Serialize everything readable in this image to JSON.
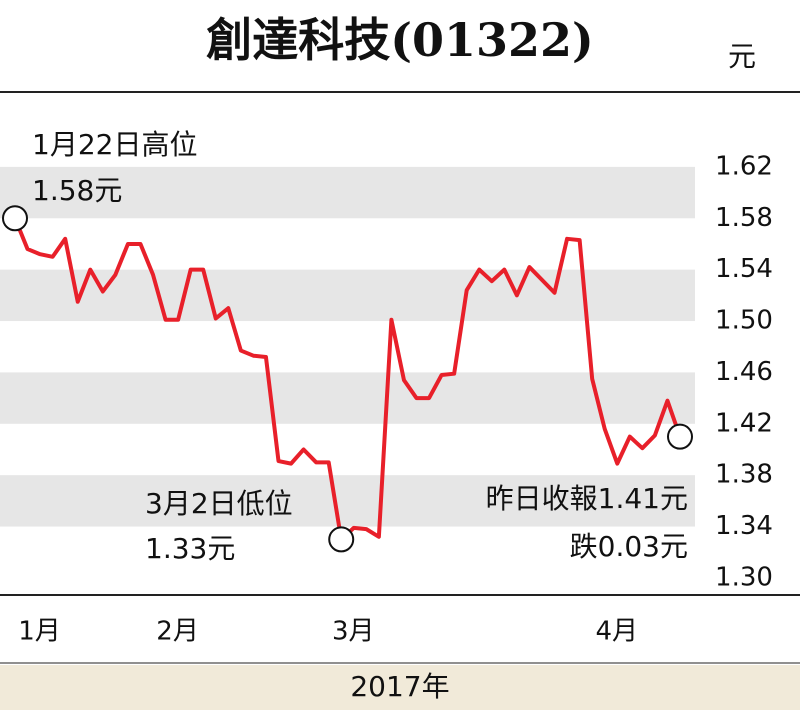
{
  "chart_data": {
    "type": "line",
    "title": "創達科技(01322)",
    "y_unit": "元",
    "x_label": "2017年",
    "annotations": [
      "1月22日高位",
      "1.58元",
      "3月2日低位",
      "1.33元",
      "昨日收報1.41元",
      "跌0.03元"
    ],
    "series": [
      {
        "color": "#e8202a",
        "values": [
          1.58,
          1.556,
          1.552,
          1.55,
          1.564,
          1.515,
          1.54,
          1.523,
          1.536,
          1.56,
          1.56,
          1.536,
          1.501,
          1.501,
          1.54,
          1.54,
          1.502,
          1.51,
          1.477,
          1.473,
          1.472,
          1.391,
          1.389,
          1.4,
          1.39,
          1.39,
          1.33,
          1.339,
          1.338,
          1.332,
          1.501,
          1.454,
          1.44,
          1.44,
          1.458,
          1.459,
          1.524,
          1.54,
          1.531,
          1.54,
          1.52,
          1.542,
          1.532,
          1.522,
          1.564,
          1.563,
          1.455,
          1.416,
          1.389,
          1.41,
          1.401,
          1.411,
          1.438,
          1.41
        ]
      }
    ],
    "xlim": [
      0,
      53
    ],
    "xticks": [
      {
        "value": 1,
        "label": "1月"
      },
      {
        "value": 12,
        "label": "2月"
      },
      {
        "value": 26,
        "label": "3月"
      },
      {
        "value": 47,
        "label": "4月"
      }
    ],
    "ylim": [
      1.2875,
      1.6775
    ],
    "yticks": [
      {
        "value": 1.3,
        "label": "1.30"
      },
      1.34,
      1.38,
      1.42,
      1.46,
      {
        "value": 1.5,
        "label": "1.50"
      },
      1.54,
      1.58,
      1.62
    ],
    "band_color": "#e6e6e6"
  }
}
